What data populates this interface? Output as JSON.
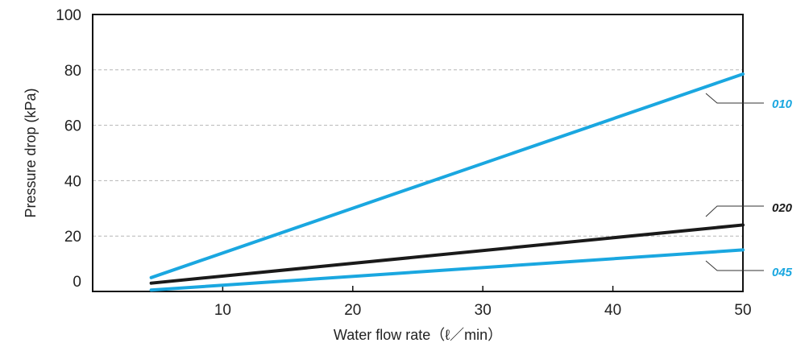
{
  "chart_data": {
    "type": "line",
    "xlabel": "Water flow rate（ℓ／min）",
    "ylabel": "Pressure drop (kPa)",
    "xlim": [
      0,
      50
    ],
    "ylim": [
      0,
      100
    ],
    "xticks": [
      10,
      20,
      30,
      40,
      50
    ],
    "yticks": [
      0,
      20,
      40,
      60,
      80,
      100
    ],
    "grid": "horizontal-dashed",
    "series": [
      {
        "name": "010",
        "color": "#1aa7e0",
        "x": [
          4.5,
          50
        ],
        "y": [
          5,
          78.5
        ]
      },
      {
        "name": "020",
        "color": "#1a1a1a",
        "x": [
          4.5,
          50
        ],
        "y": [
          3,
          24
        ]
      },
      {
        "name": "045",
        "color": "#1aa7e0",
        "x": [
          4.5,
          50
        ],
        "y": [
          0.5,
          15
        ]
      }
    ]
  }
}
